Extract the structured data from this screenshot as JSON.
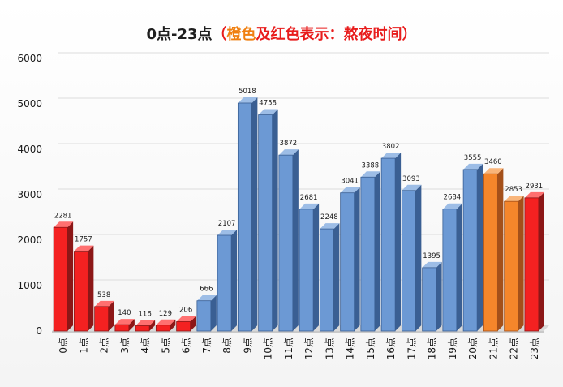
{
  "chart_data": {
    "type": "bar",
    "title": "0点-23点",
    "title_paren_open": "（",
    "title_highlight": "橙色",
    "title_rest": "及红色表示：熬夜时间）",
    "categories": [
      "0点",
      "1点",
      "2点",
      "3点",
      "4点",
      "5点",
      "6点",
      "7点",
      "8点",
      "9点",
      "10点",
      "11点",
      "12点",
      "13点",
      "14点",
      "15点",
      "16点",
      "17点",
      "18点",
      "19点",
      "20点",
      "21点",
      "22点",
      "23点"
    ],
    "values": [
      2281,
      1757,
      538,
      140,
      116,
      129,
      206,
      666,
      2107,
      5018,
      4758,
      3872,
      2681,
      2248,
      3041,
      3388,
      3802,
      3093,
      1395,
      2684,
      3555,
      3460,
      2853,
      2931
    ],
    "data_labels": [
      "2281",
      "1757",
      "538",
      "140",
      "116",
      "129",
      "206",
      "666",
      "2107",
      "5018",
      "4758",
      "3872",
      "2681",
      "2248",
      "3041",
      "3388",
      "3802",
      "3093",
      "1395",
      "2684",
      "3555",
      "3460",
      "2853",
      "2931"
    ],
    "bar_colors": [
      "red",
      "red",
      "red",
      "red",
      "red",
      "red",
      "red",
      "blue",
      "blue",
      "blue",
      "blue",
      "blue",
      "blue",
      "blue",
      "blue",
      "blue",
      "blue",
      "blue",
      "blue",
      "blue",
      "blue",
      "orange",
      "orange",
      "red"
    ],
    "palette": {
      "blue": {
        "front": "#6c99d4",
        "side": "#3a5f93",
        "top": "#9dbde6"
      },
      "red": {
        "front": "#f42121",
        "side": "#8c1717",
        "top": "#ff7070"
      },
      "orange": {
        "front": "#f5862b",
        "side": "#a4501a",
        "top": "#f9b57a"
      }
    },
    "yticks": [
      "0",
      "1000",
      "2000",
      "3000",
      "4000",
      "5000",
      "6000"
    ],
    "ylim": [
      0,
      6000
    ],
    "grid": true,
    "legend": "none",
    "xlabel": "",
    "ylabel": ""
  }
}
